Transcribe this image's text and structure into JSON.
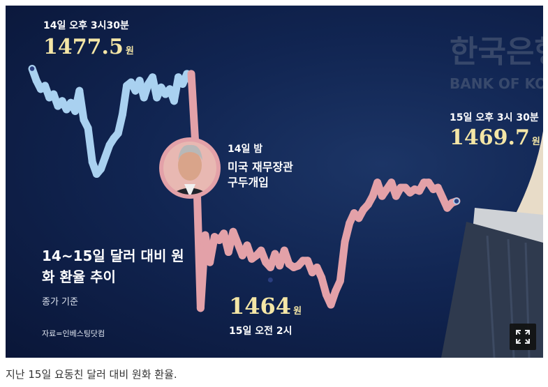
{
  "chart_data": {
    "type": "line",
    "title": "14~15일 달러 대비 원화 환율 추이",
    "subtitle": "종가 기준",
    "source": "자료=인베스팅닷컴",
    "xlabel": "",
    "ylabel": "",
    "ylim": [
      1462,
      1479
    ],
    "series": [
      {
        "segment": "before",
        "color": "#a9d1f0",
        "values": [
          1477.5,
          1476.8,
          1476.3,
          1476.5,
          1475.8,
          1476.0,
          1475.3,
          1475.6,
          1475.1,
          1475.5,
          1475.0,
          1476.2,
          1474.5,
          1474.0,
          1472.0,
          1471.3,
          1471.6,
          1472.3,
          1473.0,
          1473.4,
          1473.7,
          1474.8,
          1476.5,
          1476.7,
          1476.2,
          1476.8,
          1475.8,
          1476.6,
          1477.0,
          1475.8,
          1476.4,
          1476.0,
          1476.3,
          1475.6,
          1477.0,
          1476.6,
          1477.2,
          1476.8
        ]
      },
      {
        "segment": "after",
        "color": "#e3a1a8",
        "values": [
          1477.2,
          1472.5,
          1463.4,
          1467.7,
          1466.1,
          1467.6,
          1467.4,
          1467.8,
          1466.7,
          1467.9,
          1467.2,
          1466.5,
          1467.1,
          1466.3,
          1466.5,
          1466.8,
          1466.1,
          1465.8,
          1466.6,
          1465.9,
          1466.8,
          1466.0,
          1465.8,
          1465.9,
          1466.2,
          1466.2,
          1465.5,
          1465.8,
          1465.2,
          1464.2,
          1463.6,
          1464.4,
          1465.0,
          1467.3,
          1468.4,
          1469.0,
          1468.7,
          1469.2,
          1469.5,
          1470.0,
          1470.8,
          1470.0,
          1470.4,
          1470.8,
          1470.0,
          1470.5,
          1470.5,
          1470.2,
          1470.4,
          1470.3,
          1470.8,
          1470.8,
          1470.4,
          1470.5,
          1469.9,
          1469.3,
          1469.6,
          1469.7
        ]
      }
    ],
    "annotations": {
      "start": {
        "time": "14일 오후 3시30분",
        "value": "1477.5",
        "unit": "원"
      },
      "low": {
        "time": "15일 오전 2시",
        "value": "1464",
        "unit": "원"
      },
      "end": {
        "time": "15일 오후 3시 30분",
        "value": "1469.7",
        "unit": "원"
      },
      "event": {
        "time": "14일 밤",
        "line1": "미국 재무장관",
        "line2": "구두개입"
      }
    },
    "grid": false,
    "legend": "none"
  },
  "background": {
    "sign_korean": "한국은행",
    "sign_english": "BANK OF KOREA"
  },
  "caption": "지난 15일 요동친 달러 대비 원화 환율.",
  "icons": {
    "expand": "expand-icon",
    "portrait": "person-portrait-icon"
  },
  "colors": {
    "before": "#a9d1f0",
    "after": "#e3a1a8",
    "highlight": "#f4e6a6",
    "bg": "#112552"
  }
}
